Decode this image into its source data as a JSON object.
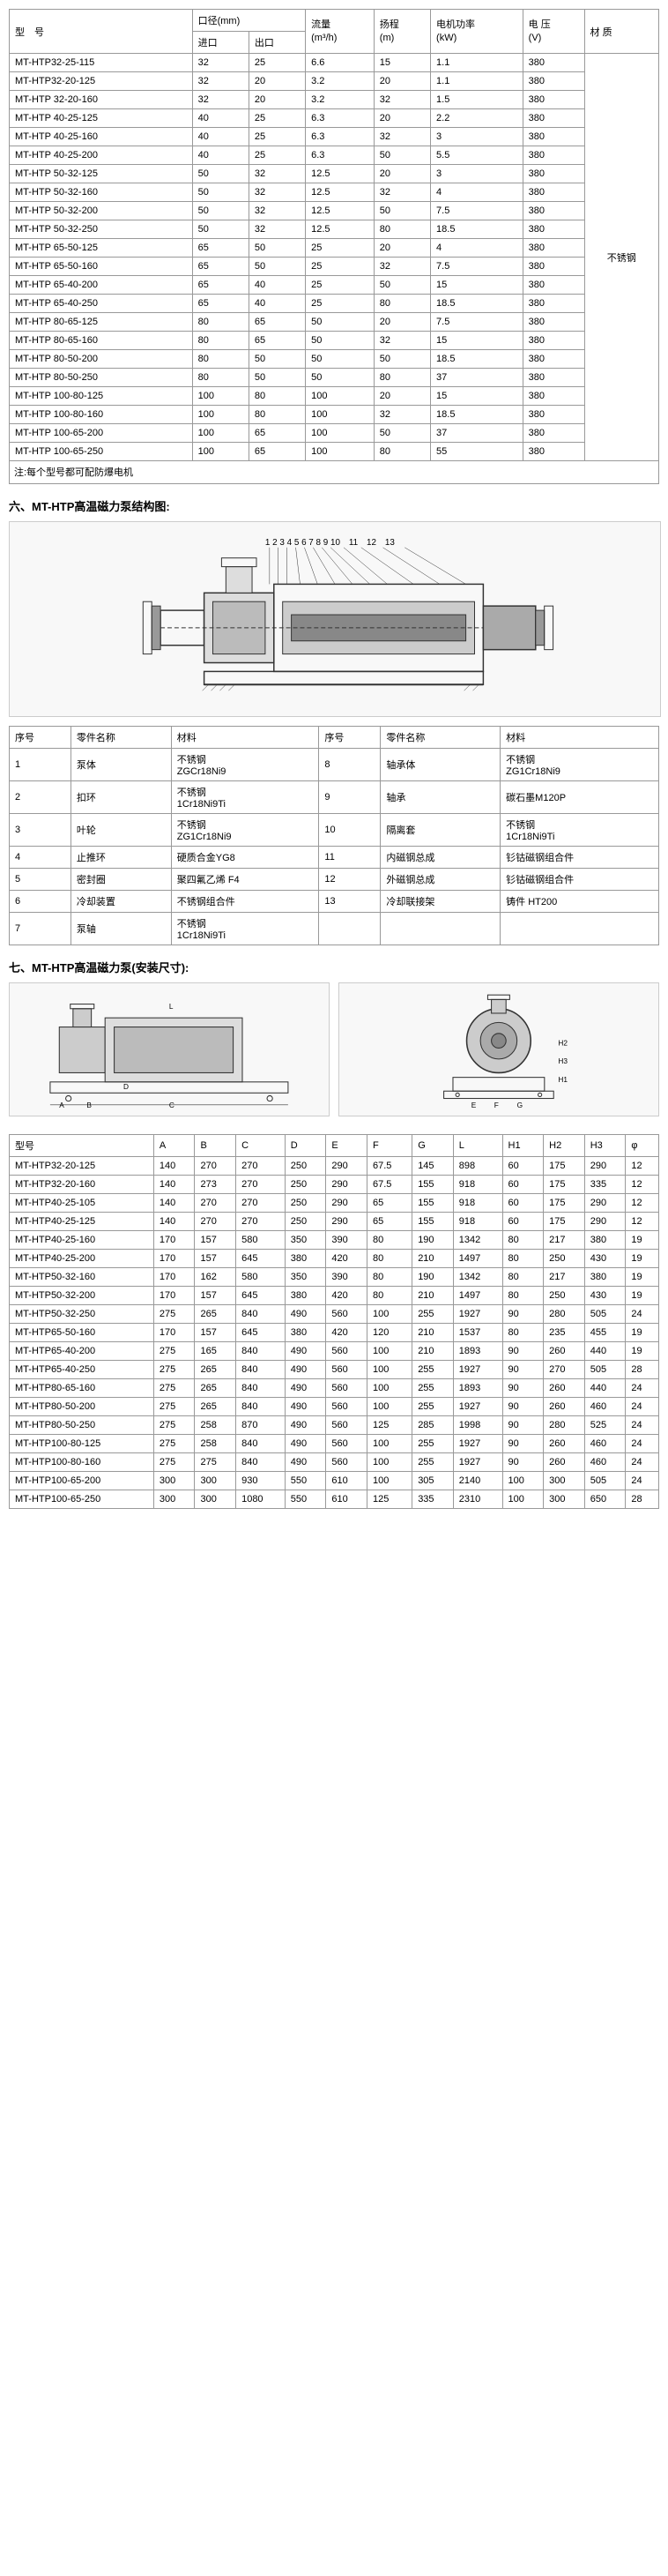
{
  "table1": {
    "headers": {
      "model": "型　号",
      "diameter": "口径(mm)",
      "diameter_in": "进口",
      "diameter_out": "出口",
      "flow": "流量",
      "flow_unit": "(m³/h)",
      "head": "扬程",
      "head_unit": "(m)",
      "power": "电机功率",
      "power_unit": "(kW)",
      "voltage": "电 压",
      "voltage_unit": "(V)",
      "material": "材 质"
    },
    "material_value": "不锈钢",
    "rows": [
      {
        "model": "MT-HTP32-25-115",
        "in": "32",
        "out": "25",
        "flow": "6.6",
        "head": "15",
        "power": "1.1",
        "volt": "380"
      },
      {
        "model": "MT-HTP32-20-125",
        "in": "32",
        "out": "20",
        "flow": "3.2",
        "head": "20",
        "power": "1.1",
        "volt": "380"
      },
      {
        "model": "MT-HTP 32-20-160",
        "in": "32",
        "out": "20",
        "flow": "3.2",
        "head": "32",
        "power": "1.5",
        "volt": "380"
      },
      {
        "model": "MT-HTP 40-25-125",
        "in": "40",
        "out": "25",
        "flow": "6.3",
        "head": "20",
        "power": "2.2",
        "volt": "380"
      },
      {
        "model": "MT-HTP 40-25-160",
        "in": "40",
        "out": "25",
        "flow": "6.3",
        "head": "32",
        "power": "3",
        "volt": "380"
      },
      {
        "model": "MT-HTP 40-25-200",
        "in": "40",
        "out": "25",
        "flow": "6.3",
        "head": "50",
        "power": "5.5",
        "volt": "380"
      },
      {
        "model": "MT-HTP 50-32-125",
        "in": "50",
        "out": "32",
        "flow": "12.5",
        "head": "20",
        "power": "3",
        "volt": "380"
      },
      {
        "model": "MT-HTP 50-32-160",
        "in": "50",
        "out": "32",
        "flow": "12.5",
        "head": "32",
        "power": "4",
        "volt": "380"
      },
      {
        "model": "MT-HTP 50-32-200",
        "in": "50",
        "out": "32",
        "flow": "12.5",
        "head": "50",
        "power": "7.5",
        "volt": "380"
      },
      {
        "model": "MT-HTP 50-32-250",
        "in": "50",
        "out": "32",
        "flow": "12.5",
        "head": "80",
        "power": "18.5",
        "volt": "380"
      },
      {
        "model": "MT-HTP 65-50-125",
        "in": "65",
        "out": "50",
        "flow": "25",
        "head": "20",
        "power": "4",
        "volt": "380"
      },
      {
        "model": "MT-HTP 65-50-160",
        "in": "65",
        "out": "50",
        "flow": "25",
        "head": "32",
        "power": "7.5",
        "volt": "380"
      },
      {
        "model": "MT-HTP 65-40-200",
        "in": "65",
        "out": "40",
        "flow": "25",
        "head": "50",
        "power": "15",
        "volt": "380"
      },
      {
        "model": "MT-HTP 65-40-250",
        "in": "65",
        "out": "40",
        "flow": "25",
        "head": "80",
        "power": "18.5",
        "volt": "380"
      },
      {
        "model": "MT-HTP 80-65-125",
        "in": "80",
        "out": "65",
        "flow": "50",
        "head": "20",
        "power": "7.5",
        "volt": "380"
      },
      {
        "model": "MT-HTP 80-65-160",
        "in": "80",
        "out": "65",
        "flow": "50",
        "head": "32",
        "power": "15",
        "volt": "380"
      },
      {
        "model": "MT-HTP 80-50-200",
        "in": "80",
        "out": "50",
        "flow": "50",
        "head": "50",
        "power": "18.5",
        "volt": "380"
      },
      {
        "model": "MT-HTP 80-50-250",
        "in": "80",
        "out": "50",
        "flow": "50",
        "head": "80",
        "power": "37",
        "volt": "380"
      },
      {
        "model": "MT-HTP 100-80-125",
        "in": "100",
        "out": "80",
        "flow": "100",
        "head": "20",
        "power": "15",
        "volt": "380"
      },
      {
        "model": "MT-HTP 100-80-160",
        "in": "100",
        "out": "80",
        "flow": "100",
        "head": "32",
        "power": "18.5",
        "volt": "380"
      },
      {
        "model": "MT-HTP 100-65-200",
        "in": "100",
        "out": "65",
        "flow": "100",
        "head": "50",
        "power": "37",
        "volt": "380"
      },
      {
        "model": "MT-HTP 100-65-250",
        "in": "100",
        "out": "65",
        "flow": "100",
        "head": "80",
        "power": "55",
        "volt": "380"
      }
    ],
    "note": "注:每个型号都可配防爆电机"
  },
  "section6_title": "六、MT-HTP高温磁力泵结构图:",
  "parts_table": {
    "headers": {
      "seq": "序号",
      "name": "零件名称",
      "material": "材料"
    },
    "rows_left": [
      {
        "seq": "1",
        "name": "泵体",
        "mat": "不锈钢\nZGCr18Ni9"
      },
      {
        "seq": "2",
        "name": "扣环",
        "mat": "不锈钢\n1Cr18Ni9Ti"
      },
      {
        "seq": "3",
        "name": "叶轮",
        "mat": "不锈钢\nZG1Cr18Ni9"
      },
      {
        "seq": "4",
        "name": "止推环",
        "mat": "硬质合金YG8"
      },
      {
        "seq": "5",
        "name": "密封圈",
        "mat": "聚四氟乙烯 F4"
      },
      {
        "seq": "6",
        "name": "冷却装置",
        "mat": "不锈钢组合件"
      },
      {
        "seq": "7",
        "name": "泵轴",
        "mat": "不锈钢\n1Cr18Ni9Ti"
      }
    ],
    "rows_right": [
      {
        "seq": "8",
        "name": "轴承体",
        "mat": "不锈钢\nZG1Cr18Ni9"
      },
      {
        "seq": "9",
        "name": "轴承",
        "mat": "碳石墨M120P"
      },
      {
        "seq": "10",
        "name": "隔离套",
        "mat": "不锈钢\n1Cr18Ni9Ti"
      },
      {
        "seq": "11",
        "name": "内磁钢总成",
        "mat": "钐钴磁钢组合件"
      },
      {
        "seq": "12",
        "name": "外磁钢总成",
        "mat": "钐钴磁钢组合件"
      },
      {
        "seq": "13",
        "name": "冷却联接架",
        "mat": "铸件 HT200"
      }
    ]
  },
  "section7_title": "七、MT-HTP高温磁力泵(安装尺寸):",
  "table3": {
    "headers": [
      "型号",
      "A",
      "B",
      "C",
      "D",
      "E",
      "F",
      "G",
      "L",
      "H1",
      "H2",
      "H3",
      "φ"
    ],
    "rows": [
      {
        "model": "MT-HTP32-20-125",
        "d": [
          "140",
          "270",
          "270",
          "250",
          "290",
          "67.5",
          "145",
          "898",
          "60",
          "175",
          "290",
          "12"
        ]
      },
      {
        "model": "MT-HTP32-20-160",
        "d": [
          "140",
          "273",
          "270",
          "250",
          "290",
          "67.5",
          "155",
          "918",
          "60",
          "175",
          "335",
          "12"
        ]
      },
      {
        "model": "MT-HTP40-25-105",
        "d": [
          "140",
          "270",
          "270",
          "250",
          "290",
          "65",
          "155",
          "918",
          "60",
          "175",
          "290",
          "12"
        ]
      },
      {
        "model": "MT-HTP40-25-125",
        "d": [
          "140",
          "270",
          "270",
          "250",
          "290",
          "65",
          "155",
          "918",
          "60",
          "175",
          "290",
          "12"
        ]
      },
      {
        "model": "MT-HTP40-25-160",
        "d": [
          "170",
          "157",
          "580",
          "350",
          "390",
          "80",
          "190",
          "1342",
          "80",
          "217",
          "380",
          "19"
        ]
      },
      {
        "model": "MT-HTP40-25-200",
        "d": [
          "170",
          "157",
          "645",
          "380",
          "420",
          "80",
          "210",
          "1497",
          "80",
          "250",
          "430",
          "19"
        ]
      },
      {
        "model": "MT-HTP50-32-160",
        "d": [
          "170",
          "162",
          "580",
          "350",
          "390",
          "80",
          "190",
          "1342",
          "80",
          "217",
          "380",
          "19"
        ]
      },
      {
        "model": "MT-HTP50-32-200",
        "d": [
          "170",
          "157",
          "645",
          "380",
          "420",
          "80",
          "210",
          "1497",
          "80",
          "250",
          "430",
          "19"
        ]
      },
      {
        "model": "MT-HTP50-32-250",
        "d": [
          "275",
          "265",
          "840",
          "490",
          "560",
          "100",
          "255",
          "1927",
          "90",
          "280",
          "505",
          "24"
        ]
      },
      {
        "model": "MT-HTP65-50-160",
        "d": [
          "170",
          "157",
          "645",
          "380",
          "420",
          "120",
          "210",
          "1537",
          "80",
          "235",
          "455",
          "19"
        ]
      },
      {
        "model": "MT-HTP65-40-200",
        "d": [
          "275",
          "165",
          "840",
          "490",
          "560",
          "100",
          "210",
          "1893",
          "90",
          "260",
          "440",
          "19"
        ]
      },
      {
        "model": "MT-HTP65-40-250",
        "d": [
          "275",
          "265",
          "840",
          "490",
          "560",
          "100",
          "255",
          "1927",
          "90",
          "270",
          "505",
          "28"
        ]
      },
      {
        "model": "MT-HTP80-65-160",
        "d": [
          "275",
          "265",
          "840",
          "490",
          "560",
          "100",
          "255",
          "1893",
          "90",
          "260",
          "440",
          "24"
        ]
      },
      {
        "model": "MT-HTP80-50-200",
        "d": [
          "275",
          "265",
          "840",
          "490",
          "560",
          "100",
          "255",
          "1927",
          "90",
          "260",
          "460",
          "24"
        ]
      },
      {
        "model": "MT-HTP80-50-250",
        "d": [
          "275",
          "258",
          "870",
          "490",
          "560",
          "125",
          "285",
          "1998",
          "90",
          "280",
          "525",
          "24"
        ]
      },
      {
        "model": "MT-HTP100-80-125",
        "d": [
          "275",
          "258",
          "840",
          "490",
          "560",
          "100",
          "255",
          "1927",
          "90",
          "260",
          "460",
          "24"
        ]
      },
      {
        "model": "MT-HTP100-80-160",
        "d": [
          "275",
          "275",
          "840",
          "490",
          "560",
          "100",
          "255",
          "1927",
          "90",
          "260",
          "460",
          "24"
        ]
      },
      {
        "model": "MT-HTP100-65-200",
        "d": [
          "300",
          "300",
          "930",
          "550",
          "610",
          "100",
          "305",
          "2140",
          "100",
          "300",
          "505",
          "24"
        ]
      },
      {
        "model": "MT-HTP100-65-250",
        "d": [
          "300",
          "300",
          "1080",
          "550",
          "610",
          "125",
          "335",
          "2310",
          "100",
          "300",
          "650",
          "28"
        ]
      }
    ]
  },
  "diagram_numbers": "1 2 3 4 5 6 7 8 9 10　11　12　13"
}
